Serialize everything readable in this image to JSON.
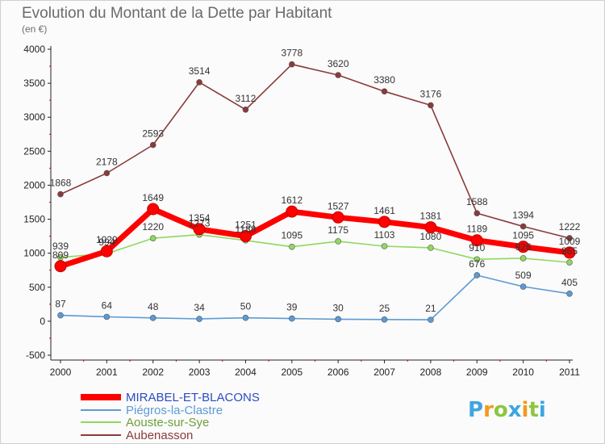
{
  "chart_data": {
    "type": "line",
    "title": "Evolution du Montant de la Dette par Habitant",
    "subtitle": "(en €)",
    "xlabel": "",
    "ylabel": "",
    "ylim": [
      -500,
      4000
    ],
    "yticks": [
      -500,
      0,
      500,
      1000,
      1500,
      2000,
      2500,
      3000,
      3500,
      4000
    ],
    "x": [
      "2000",
      "2001",
      "2002",
      "2003",
      "2004",
      "2005",
      "2006",
      "2007",
      "2008",
      "2009",
      "2010",
      "2011"
    ],
    "grid": false,
    "legend_position": "bottom-left",
    "series": [
      {
        "name": "MIRABEL-ET-BLACONS",
        "color": "#ff0000",
        "values": [
          809,
          1029,
          1649,
          1354,
          1251,
          1612,
          1527,
          1461,
          1381,
          1189,
          1095,
          1009
        ],
        "labels": [
          "809",
          "1029",
          "1649",
          "1354",
          "1251",
          "1612",
          "1527",
          "1461",
          "1381",
          "1189",
          "1095",
          "1009"
        ]
      },
      {
        "name": "Piégros-la-Clastre",
        "color": "#5b9bd5",
        "values": [
          87,
          64,
          48,
          34,
          50,
          39,
          30,
          25,
          21,
          676,
          509,
          405
        ],
        "labels": [
          "87",
          "64",
          "48",
          "34",
          "50",
          "39",
          "30",
          "25",
          "21",
          "676",
          "509",
          "405"
        ]
      },
      {
        "name": "Aouste-sur-Sye",
        "color": "#90d860",
        "values": [
          939,
          994,
          1220,
          1273,
          1188,
          1095,
          1175,
          1103,
          1080,
          910,
          926,
          865
        ],
        "labels": [
          "939",
          "994",
          "1220",
          "1273",
          "1188",
          "1095",
          "1175",
          "1103",
          "1080",
          "910",
          "926",
          "865"
        ]
      },
      {
        "name": "Aubenasson",
        "color": "#8b3a3a",
        "values": [
          1868,
          2178,
          2593,
          3514,
          3112,
          3778,
          3620,
          3380,
          3176,
          1588,
          1394,
          1222
        ],
        "labels": [
          "1868",
          "2178",
          "2593",
          "3514",
          "3112",
          "3778",
          "3620",
          "3380",
          "3176",
          "1588",
          "1394",
          "1222"
        ]
      }
    ]
  },
  "brand": {
    "letters": [
      "P",
      "r",
      "o",
      "x",
      "i",
      "t",
      "i"
    ],
    "colors": [
      "#3ea6e0",
      "#f39a1b",
      "#8cc63f",
      "#3ea6e0",
      "#f39a1b",
      "#8cc63f",
      "#3ea6e0"
    ]
  }
}
